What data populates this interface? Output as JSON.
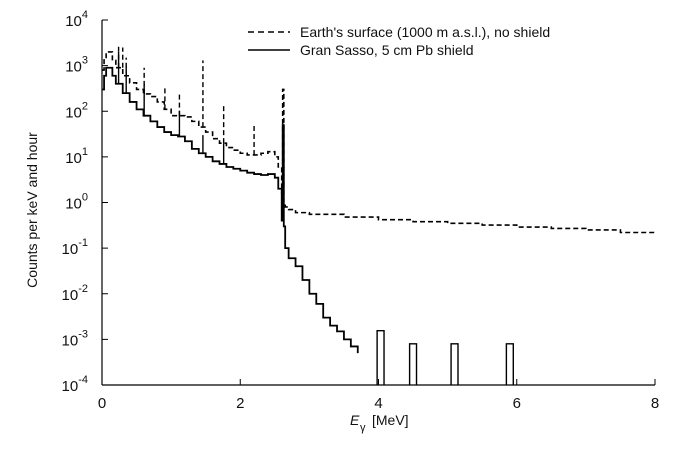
{
  "chart_data": {
    "type": "line",
    "title": "",
    "xlabel": "E",
    "xlabel_sub": "γ",
    "xlabel_unit": "[MeV]",
    "ylabel": "Counts per keV and hour",
    "xlim": [
      0,
      8
    ],
    "ylim_log10": [
      -4,
      4
    ],
    "y_scale": "log",
    "grid": false,
    "legend_position": "top-right",
    "x_ticks": [
      "0",
      "2",
      "4",
      "6",
      "8"
    ],
    "y_ticks": [
      {
        "base": "10",
        "exp": "4"
      },
      {
        "base": "10",
        "exp": "3"
      },
      {
        "base": "10",
        "exp": "2"
      },
      {
        "base": "10",
        "exp": "1"
      },
      {
        "base": "10",
        "exp": "0"
      },
      {
        "base": "10",
        "exp": "-1"
      },
      {
        "base": "10",
        "exp": "-2"
      },
      {
        "base": "10",
        "exp": "-3"
      },
      {
        "base": "10",
        "exp": "-4"
      }
    ],
    "series": [
      {
        "name": "Earth's surface (1000 m a.s.l.), no shield",
        "style": "dashed",
        "color": "#000000",
        "x": [
          0.0,
          0.03,
          0.06,
          0.1,
          0.15,
          0.2,
          0.3,
          0.4,
          0.5,
          0.6,
          0.7,
          0.8,
          0.9,
          1.0,
          1.1,
          1.2,
          1.3,
          1.4,
          1.5,
          1.6,
          1.7,
          1.8,
          1.9,
          2.0,
          2.1,
          2.2,
          2.3,
          2.4,
          2.5,
          2.55,
          2.6,
          2.614,
          2.63,
          2.65,
          2.7,
          2.8,
          3.0,
          3.5,
          4.0,
          4.5,
          5.0,
          5.5,
          6.0,
          6.5,
          7.0,
          7.5,
          8.0
        ],
        "y": [
          800,
          1400,
          2000,
          2000,
          1300,
          900,
          600,
          420,
          300,
          240,
          210,
          160,
          110,
          80,
          80,
          75,
          60,
          45,
          35,
          25,
          20,
          16,
          14,
          12,
          11,
          11,
          12,
          13,
          10,
          6,
          1.6,
          300,
          1.0,
          0.8,
          0.7,
          0.6,
          0.55,
          0.48,
          0.42,
          0.38,
          0.35,
          0.32,
          0.29,
          0.27,
          0.25,
          0.22,
          0.2
        ]
      },
      {
        "name": "Gran Sasso, 5 cm Pb shield",
        "style": "solid",
        "color": "#000000",
        "x": [
          0.0,
          0.03,
          0.06,
          0.1,
          0.15,
          0.2,
          0.3,
          0.4,
          0.5,
          0.6,
          0.7,
          0.8,
          0.9,
          1.0,
          1.1,
          1.2,
          1.3,
          1.4,
          1.5,
          1.6,
          1.7,
          1.8,
          1.9,
          2.0,
          2.1,
          2.2,
          2.3,
          2.4,
          2.5,
          2.55,
          2.6,
          2.614,
          2.63,
          2.65,
          2.7,
          2.8,
          2.9,
          3.0,
          3.1,
          3.2,
          3.3,
          3.4,
          3.5,
          3.6,
          3.7
        ],
        "y": [
          300,
          600,
          900,
          900,
          600,
          400,
          250,
          160,
          110,
          80,
          60,
          45,
          35,
          30,
          28,
          22,
          15,
          12,
          10,
          8,
          7,
          6,
          5.5,
          5,
          4.5,
          4.2,
          4.0,
          4.2,
          3.5,
          2.0,
          0.4,
          50,
          0.3,
          0.1,
          0.06,
          0.04,
          0.02,
          0.01,
          0.006,
          0.003,
          0.002,
          0.0015,
          0.001,
          0.0007,
          0.0005
        ]
      }
    ],
    "peaks_surface": [
      {
        "x": 0.24,
        "y": 3000
      },
      {
        "x": 0.3,
        "y": 2500
      },
      {
        "x": 0.35,
        "y": 1500
      },
      {
        "x": 0.61,
        "y": 900
      },
      {
        "x": 0.91,
        "y": 350
      },
      {
        "x": 1.12,
        "y": 250
      },
      {
        "x": 1.46,
        "y": 1300
      },
      {
        "x": 1.76,
        "y": 150
      },
      {
        "x": 2.2,
        "y": 50
      }
    ],
    "peaks_shielded": [
      {
        "x": 0.24,
        "y": 2000
      },
      {
        "x": 0.35,
        "y": 1000
      },
      {
        "x": 0.61,
        "y": 400
      },
      {
        "x": 1.12,
        "y": 100
      },
      {
        "x": 1.46,
        "y": 30
      },
      {
        "x": 1.76,
        "y": 20
      }
    ],
    "shielded_isolated_bins": [
      {
        "x0": 3.98,
        "x1": 4.08,
        "y": 0.00155
      },
      {
        "x0": 4.45,
        "x1": 4.55,
        "y": 0.0008
      },
      {
        "x0": 5.05,
        "x1": 5.15,
        "y": 0.0008
      },
      {
        "x0": 5.85,
        "x1": 5.95,
        "y": 0.0008
      }
    ]
  }
}
